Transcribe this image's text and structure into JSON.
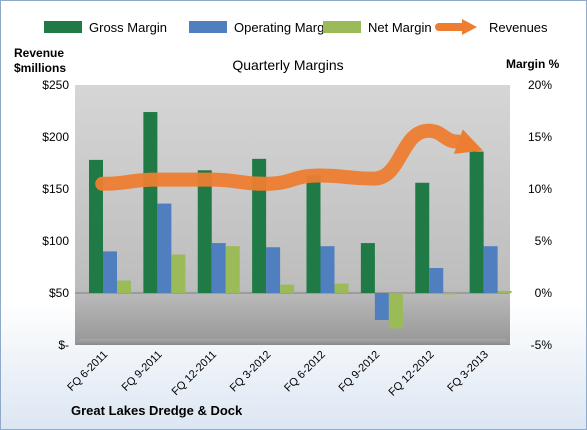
{
  "chart_data": {
    "type": "bar",
    "title": "Quarterly Margins",
    "footer": "Great Lakes Dredge & Dock",
    "ylabel_left": [
      "Revenue",
      "$millions"
    ],
    "ylabel_right": "Margin %",
    "categories": [
      "FQ 6-2011",
      "FQ 9-2011",
      "FQ 12-2011",
      "FQ 3-2012",
      "FQ 6-2012",
      "FQ 9-2012",
      "FQ 12-2012",
      "FQ 3-2013"
    ],
    "left_axis": {
      "min": 0,
      "max": 250,
      "ticks": [
        0,
        50,
        100,
        150,
        200,
        250
      ],
      "tick_labels": [
        "$-",
        "$50",
        "$100",
        "$150",
        "$200",
        "$250"
      ]
    },
    "right_axis": {
      "min": -5,
      "max": 20,
      "ticks": [
        -5,
        0,
        5,
        10,
        15,
        20
      ],
      "tick_labels": [
        "-5%",
        "0%",
        "5%",
        "10%",
        "15%",
        "20%"
      ]
    },
    "series": [
      {
        "name": "Gross Margin",
        "kind": "bar",
        "axis": "right",
        "color": "#1f7a45",
        "values": [
          12.8,
          17.4,
          11.8,
          12.9,
          11.3,
          4.8,
          10.6,
          13.6
        ]
      },
      {
        "name": "Operating Margin",
        "kind": "bar",
        "axis": "right",
        "color": "#4f7fbf",
        "values": [
          4.0,
          8.6,
          4.8,
          4.4,
          4.5,
          -2.6,
          2.4,
          4.5
        ]
      },
      {
        "name": "Net Margin",
        "kind": "bar",
        "axis": "right",
        "color": "#9bbb59",
        "values": [
          1.2,
          3.7,
          4.5,
          0.8,
          0.9,
          -3.4,
          0,
          0.2
        ]
      },
      {
        "name": "Revenues",
        "kind": "line",
        "axis": "left",
        "color": "#ed7d31",
        "values": [
          155,
          159,
          159,
          155,
          163,
          160,
          206,
          187
        ]
      }
    ],
    "legend_position": "top",
    "grid": false
  }
}
